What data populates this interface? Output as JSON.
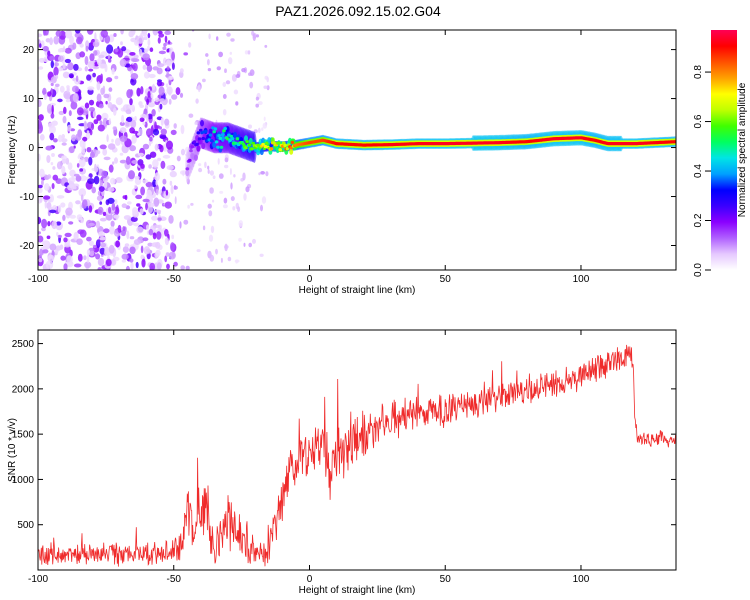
{
  "title": "PAZ1.2026.092.15.02.G04",
  "chart_data": [
    {
      "type": "heatmap",
      "title": "PAZ1.2026.092.15.02.G04",
      "xlabel": "Height of straight line (km)",
      "ylabel": "Frequency (Hz)",
      "xlim": [
        -100,
        135
      ],
      "ylim": [
        -25,
        24
      ],
      "x_ticks": [
        -100,
        -50,
        0,
        50,
        100
      ],
      "y_ticks": [
        -20,
        -10,
        0,
        10,
        20
      ],
      "colorbar": {
        "label": "Normalized spectral amplitude",
        "range": [
          0,
          0.97
        ],
        "ticks": [
          0.0,
          0.2,
          0.4,
          0.6,
          0.8
        ],
        "colormap": [
          "#ffffff",
          "#e5c8ff",
          "#b060ff",
          "#8a00ff",
          "#3a00ff",
          "#0000ff",
          "#00a0ff",
          "#00e5e5",
          "#00ff60",
          "#40ff00",
          "#c0ff00",
          "#ffff00",
          "#ffa000",
          "#ff5000",
          "#ff0000",
          "#ff0055"
        ]
      },
      "ridge": {
        "x": [
          -45,
          -40,
          -35,
          -30,
          -25,
          -20,
          -15,
          -10,
          -5,
          0,
          5,
          10,
          20,
          30,
          40,
          50,
          60,
          70,
          80,
          90,
          100,
          105,
          110,
          120,
          135
        ],
        "freq": [
          -4,
          3,
          2,
          2,
          1,
          0,
          0.3,
          0.2,
          0.5,
          1,
          1.5,
          0.8,
          0.5,
          0.6,
          0.8,
          0.8,
          0.9,
          1,
          1.2,
          1.8,
          2,
          1.5,
          0.8,
          0.8,
          1.2
        ],
        "amplitude": [
          0.15,
          0.3,
          0.45,
          0.5,
          0.55,
          0.6,
          0.7,
          0.75,
          0.8,
          0.85,
          0.85,
          0.9,
          0.9,
          0.92,
          0.92,
          0.93,
          0.93,
          0.93,
          0.9,
          0.93,
          0.93,
          0.9,
          0.92,
          0.93,
          0.9
        ]
      }
    },
    {
      "type": "line",
      "xlabel": "Height of straight line (km)",
      "ylabel": "SNR (10 * v/v)",
      "xlim": [
        -100,
        135
      ],
      "ylim": [
        0,
        2650
      ],
      "x_ticks": [
        -100,
        -50,
        0,
        50,
        100
      ],
      "y_ticks": [
        500,
        1000,
        1500,
        2000,
        2500
      ],
      "color": "#ef2b2b",
      "x": [
        -100,
        -90,
        -80,
        -70,
        -60,
        -55,
        -50,
        -47,
        -45,
        -43,
        -40,
        -38,
        -35,
        -30,
        -25,
        -22,
        -20,
        -17,
        -15,
        -12,
        -10,
        -8,
        -5,
        -3,
        0,
        3,
        5,
        8,
        10,
        12,
        15,
        20,
        25,
        30,
        35,
        40,
        45,
        50,
        55,
        60,
        65,
        70,
        75,
        80,
        85,
        90,
        95,
        100,
        105,
        110,
        115,
        118,
        119,
        120,
        121,
        125,
        130,
        135
      ],
      "y": [
        170,
        170,
        170,
        170,
        180,
        180,
        200,
        300,
        650,
        450,
        750,
        800,
        300,
        600,
        400,
        200,
        170,
        150,
        200,
        550,
        850,
        1050,
        1200,
        1250,
        1300,
        1350,
        1450,
        1100,
        1350,
        1250,
        1450,
        1500,
        1600,
        1650,
        1700,
        1700,
        1750,
        1750,
        1800,
        1850,
        1880,
        1920,
        1950,
        2000,
        2020,
        2050,
        2100,
        2150,
        2200,
        2250,
        2350,
        2400,
        2350,
        1700,
        1450,
        1450,
        1450,
        1420
      ],
      "y_noise": [
        150,
        150,
        150,
        150,
        150,
        150,
        150,
        250,
        500,
        400,
        500,
        450,
        350,
        350,
        350,
        300,
        180,
        150,
        200,
        400,
        400,
        400,
        350,
        350,
        350,
        350,
        400,
        400,
        400,
        350,
        350,
        300,
        250,
        250,
        250,
        230,
        230,
        200,
        200,
        200,
        200,
        200,
        180,
        180,
        180,
        180,
        180,
        180,
        180,
        200,
        200,
        220,
        200,
        150,
        100,
        100,
        100,
        100
      ]
    }
  ]
}
